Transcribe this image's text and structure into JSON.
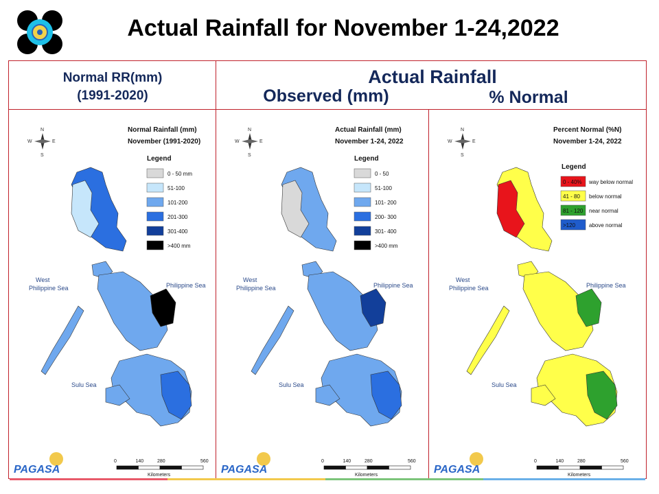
{
  "title": "Actual Rainfall for November 1-24,2022",
  "headers": {
    "normal_line1": "Normal RR(mm)",
    "normal_line2": "(1991-2020)",
    "actual": "Actual Rainfall",
    "observed": "Observed (mm)",
    "percent": "% Normal"
  },
  "colors": {
    "frame": "#c0202a",
    "header_text": "#14285a",
    "sea": "#ffffff"
  },
  "maps": [
    {
      "title1": "Normal Rainfall (mm)",
      "title2": "November (1991-2020)",
      "legend_title": "Legend",
      "legend": [
        {
          "label": "0 - 50 mm",
          "color": "#d9d9d9"
        },
        {
          "label": "51-100",
          "color": "#c6e6fb"
        },
        {
          "label": "101-200",
          "color": "#6fa8ee"
        },
        {
          "label": "201-300",
          "color": "#2b6fe0"
        },
        {
          "label": "301-400",
          "color": "#123f9a"
        },
        {
          "label": ">400 mm",
          "color": "#000000"
        }
      ],
      "fills": {
        "north": "#2b6fe0",
        "northwest": "#c6e6fb",
        "central": "#6fa8ee",
        "east": "#000000",
        "south": "#6fa8ee",
        "southeast": "#2b6fe0"
      }
    },
    {
      "title1": "Actual Rainfall (mm)",
      "title2": "November 1-24, 2022",
      "legend_title": "Legend",
      "legend": [
        {
          "label": "0 - 50",
          "color": "#d9d9d9"
        },
        {
          "label": "51-100",
          "color": "#c6e6fb"
        },
        {
          "label": "101- 200",
          "color": "#6fa8ee"
        },
        {
          "label": "200- 300",
          "color": "#2b6fe0"
        },
        {
          "label": "301- 400",
          "color": "#123f9a"
        },
        {
          "label": ">400 mm",
          "color": "#000000"
        }
      ],
      "fills": {
        "north": "#6fa8ee",
        "northwest": "#d9d9d9",
        "central": "#6fa8ee",
        "east": "#123f9a",
        "south": "#6fa8ee",
        "southeast": "#2b6fe0"
      }
    },
    {
      "title1": "Percent Normal (%N)",
      "title2": "November 1-24, 2022",
      "legend_title": "Legend",
      "legend": [
        {
          "label": "way below normal",
          "box": "0 - 40%",
          "color": "#e8141b"
        },
        {
          "label": "below normal",
          "box": "41 - 80",
          "color": "#ffff4a"
        },
        {
          "label": "near normal",
          "box": "81 - 120",
          "color": "#2ea12e"
        },
        {
          "label": "above normal",
          "box": ">120",
          "color": "#1f5ccc"
        }
      ],
      "fills": {
        "north": "#ffff4a",
        "northwest": "#e8141b",
        "central": "#ffff4a",
        "east": "#2ea12e",
        "south": "#ffff4a",
        "southeast": "#2ea12e"
      }
    }
  ],
  "map_labels": {
    "west1": "West",
    "west2": "Philippine Sea",
    "east": "Philippine Sea",
    "sulu": "Sulu Sea",
    "scale_ticks": [
      "0",
      "140",
      "280",
      "560"
    ],
    "scale_unit": "Kilometers",
    "compass_n": "N",
    "compass_s": "S",
    "compass_e": "E",
    "compass_w": "W",
    "pagasa": "PAGASA"
  }
}
